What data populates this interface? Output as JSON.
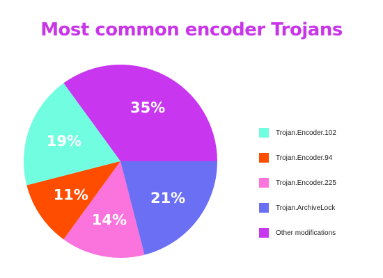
{
  "title_color": "#c936e8",
  "chart_data": {
    "type": "pie",
    "title": "Most common encoder Trojans",
    "slices": [
      {
        "name": "Other modifications",
        "value": 35,
        "label": "35%",
        "color": "#c936ef"
      },
      {
        "name": "Trojan.Encoder.102",
        "value": 19,
        "label": "19%",
        "color": "#70fde0"
      },
      {
        "name": "Trojan.Encoder.94",
        "value": 11,
        "label": "11%",
        "color": "#ff4d00"
      },
      {
        "name": "Trojan.Encoder.225",
        "value": 14,
        "label": "14%",
        "color": "#fb73dd"
      },
      {
        "name": "Trojan.ArchiveLock",
        "value": 21,
        "label": "21%",
        "color": "#6a6ff4"
      }
    ],
    "legend": {
      "placement": "right",
      "items": [
        {
          "label": "Trojan.Encoder.102",
          "color": "#70fde0"
        },
        {
          "label": "Trojan.Encoder.94",
          "color": "#ff4d00"
        },
        {
          "label": "Trojan.Encoder.225",
          "color": "#fb73dd"
        },
        {
          "label": "Trojan.ArchiveLock",
          "color": "#6a6ff4"
        },
        {
          "label": "Other modifications",
          "color": "#c936ef"
        }
      ]
    }
  }
}
